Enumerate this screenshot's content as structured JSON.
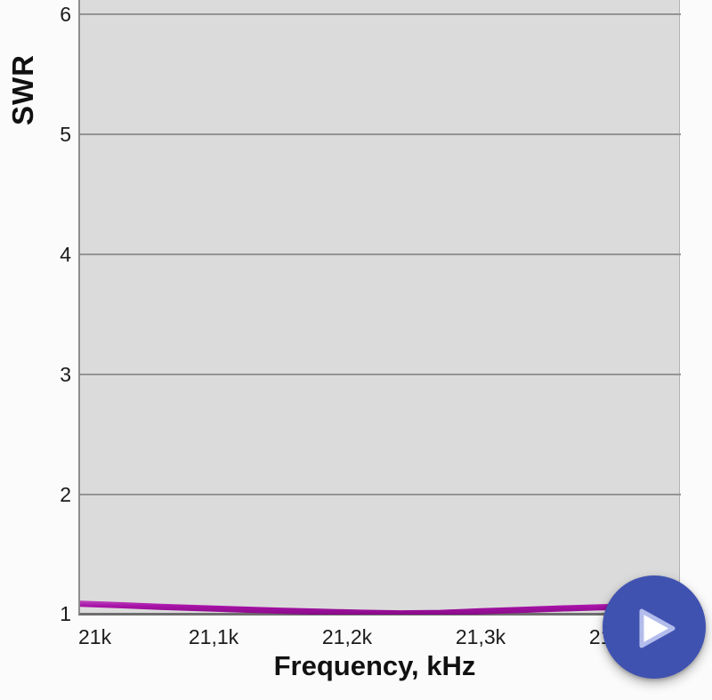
{
  "chart_data": {
    "type": "line",
    "title": "",
    "xlabel": "Frequency, kHz",
    "ylabel": "SWR",
    "xlim": [
      21000,
      21450
    ],
    "ylim": [
      1,
      6.12
    ],
    "grid": true,
    "legend": null,
    "x_ticks": [
      {
        "value": 21000,
        "label": "21k"
      },
      {
        "value": 21100,
        "label": "21,1k"
      },
      {
        "value": 21200,
        "label": "21,2k"
      },
      {
        "value": 21300,
        "label": "21,3k"
      },
      {
        "value": 21400,
        "label": "21,4k"
      }
    ],
    "y_ticks": [
      {
        "value": 1,
        "label": "1"
      },
      {
        "value": 2,
        "label": "2"
      },
      {
        "value": 3,
        "label": "3"
      },
      {
        "value": 4,
        "label": "4"
      },
      {
        "value": 5,
        "label": "5"
      },
      {
        "value": 6,
        "label": "6"
      }
    ],
    "series": [
      {
        "name": "SWR",
        "color": "#a812a8",
        "points": [
          [
            21000,
            1.095
          ],
          [
            21030,
            1.082
          ],
          [
            21060,
            1.069
          ],
          [
            21090,
            1.057
          ],
          [
            21120,
            1.046
          ],
          [
            21150,
            1.036
          ],
          [
            21180,
            1.027
          ],
          [
            21210,
            1.019
          ],
          [
            21240,
            1.014
          ],
          [
            21270,
            1.018
          ],
          [
            21300,
            1.031
          ],
          [
            21330,
            1.043
          ],
          [
            21360,
            1.055
          ],
          [
            21390,
            1.064
          ],
          [
            21420,
            1.075
          ],
          [
            21450,
            1.085
          ]
        ]
      }
    ]
  },
  "fab": {
    "action": "start-scan",
    "icon": "play-icon",
    "color": "#4052b0",
    "icon_border_color": "#b3bdec"
  },
  "colors": {
    "page_background": "#fbfbfb",
    "plot_background": "#dbdbdb",
    "gridline": "#949494",
    "axis_text": "#1b1b1b",
    "curve": "#a812a8",
    "accent": "#4052b0"
  }
}
